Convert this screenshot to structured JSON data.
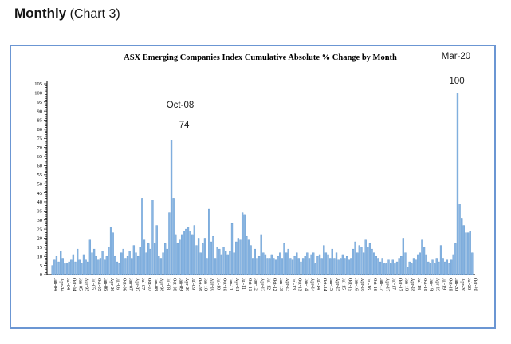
{
  "page": {
    "heading_bold": "Monthly",
    "heading_rest": " (Chart 3)"
  },
  "chart": {
    "colors": {
      "bar_fill": "#89b5e2",
      "bar_edge": "#5e96cf",
      "frame_border": "#6b96d3",
      "axis": "#000000"
    }
  },
  "chart_data": {
    "type": "bar",
    "title": "ASX Emerging Companies Index Cumulative Absolute % Change by Month",
    "xlabel": "",
    "ylabel": "",
    "ylim": [
      0,
      105
    ],
    "y_tick_step": 5,
    "y_minor_tick_step": 1,
    "x_tick_interval_months": 3,
    "grid": false,
    "legend": "none",
    "annotations": [
      {
        "month": "Oct-08",
        "value": 74,
        "text_label": "Oct-08",
        "value_label": "74"
      },
      {
        "month": "Mar-20",
        "value": 100,
        "text_label": "Mar-20",
        "value_label": "100"
      }
    ],
    "categories": [
      "Jan-04",
      "Feb-04",
      "Mar-04",
      "Apr-04",
      "May-04",
      "Jun-04",
      "Jul-04",
      "Aug-04",
      "Sep-04",
      "Oct-04",
      "Nov-04",
      "Dec-04",
      "Jan-05",
      "Feb-05",
      "Mar-05",
      "Apr-05",
      "May-05",
      "Jun-05",
      "Jul-05",
      "Aug-05",
      "Sep-05",
      "Oct-05",
      "Nov-05",
      "Dec-05",
      "Jan-06",
      "Feb-06",
      "Mar-06",
      "Apr-06",
      "May-06",
      "Jun-06",
      "Jul-06",
      "Aug-06",
      "Sep-06",
      "Oct-06",
      "Nov-06",
      "Dec-06",
      "Jan-07",
      "Feb-07",
      "Mar-07",
      "Apr-07",
      "May-07",
      "Jun-07",
      "Jul-07",
      "Aug-07",
      "Sep-07",
      "Oct-07",
      "Nov-07",
      "Dec-07",
      "Jan-08",
      "Feb-08",
      "Mar-08",
      "Apr-08",
      "May-08",
      "Jun-08",
      "Jul-08",
      "Aug-08",
      "Sep-08",
      "Oct-08",
      "Nov-08",
      "Dec-08",
      "Jan-09",
      "Feb-09",
      "Mar-09",
      "Apr-09",
      "May-09",
      "Jun-09",
      "Jul-09",
      "Aug-09",
      "Sep-09",
      "Oct-09",
      "Nov-09",
      "Dec-09",
      "Jan-10",
      "Feb-10",
      "Mar-10",
      "Apr-10",
      "May-10",
      "Jun-10",
      "Jul-10",
      "Aug-10",
      "Sep-10",
      "Oct-10",
      "Nov-10",
      "Dec-10",
      "Jan-11",
      "Feb-11",
      "Mar-11",
      "Apr-11",
      "May-11",
      "Jun-11",
      "Jul-11",
      "Aug-11",
      "Sep-11",
      "Oct-11",
      "Nov-11",
      "Dec-11",
      "Jan-12",
      "Feb-12",
      "Mar-12",
      "Apr-12",
      "May-12",
      "Jun-12",
      "Jul-12",
      "Aug-12",
      "Sep-12",
      "Oct-12",
      "Nov-12",
      "Dec-12",
      "Jan-13",
      "Feb-13",
      "Mar-13",
      "Apr-13",
      "May-13",
      "Jun-13",
      "Jul-13",
      "Aug-13",
      "Sep-13",
      "Oct-13",
      "Nov-13",
      "Dec-13",
      "Jan-14",
      "Feb-14",
      "Mar-14",
      "Apr-14",
      "May-14",
      "Jun-14",
      "Jul-14",
      "Aug-14",
      "Sep-14",
      "Oct-14",
      "Nov-14",
      "Dec-14",
      "Jan-15",
      "Feb-15",
      "Mar-15",
      "Apr-15",
      "May-15",
      "Jun-15",
      "Jul-15",
      "Aug-15",
      "Sep-15",
      "Oct-15",
      "Nov-15",
      "Dec-15",
      "Jan-16",
      "Feb-16",
      "Mar-16",
      "Apr-16",
      "May-16",
      "Jun-16",
      "Jul-16",
      "Aug-16",
      "Sep-16",
      "Oct-16",
      "Nov-16",
      "Dec-16",
      "Jan-17",
      "Feb-17",
      "Mar-17",
      "Apr-17",
      "May-17",
      "Jun-17",
      "Jul-17",
      "Aug-17",
      "Sep-17",
      "Oct-17",
      "Nov-17",
      "Dec-17",
      "Jan-18",
      "Feb-18",
      "Mar-18",
      "Apr-18",
      "May-18",
      "Jun-18",
      "Jul-18",
      "Aug-18",
      "Sep-18",
      "Oct-18",
      "Nov-18",
      "Dec-18",
      "Jan-19",
      "Feb-19",
      "Mar-19",
      "Apr-19",
      "May-19",
      "Jun-19",
      "Jul-19",
      "Aug-19",
      "Sep-19",
      "Oct-19",
      "Nov-19",
      "Dec-19",
      "Jan-20",
      "Feb-20",
      "Mar-20",
      "Apr-20",
      "May-20",
      "Jun-20",
      "Jul-20",
      "Aug-20",
      "Sep-20",
      "Oct-20"
    ],
    "values": [
      5,
      8,
      10,
      7,
      13,
      9,
      6,
      6,
      7,
      8,
      11,
      7,
      14,
      8,
      6,
      11,
      8,
      7,
      19,
      12,
      14,
      10,
      8,
      9,
      13,
      8,
      10,
      15,
      26,
      23,
      10,
      7,
      6,
      12,
      14,
      9,
      10,
      13,
      9,
      16,
      12,
      10,
      15,
      42,
      19,
      12,
      17,
      14,
      41,
      17,
      27,
      10,
      9,
      12,
      17,
      14,
      34,
      74,
      42,
      22,
      17,
      19,
      22,
      24,
      25,
      26,
      24,
      22,
      27,
      16,
      20,
      12,
      17,
      20,
      9,
      36,
      18,
      21,
      9,
      15,
      14,
      11,
      15,
      13,
      11,
      13,
      28,
      12,
      18,
      20,
      19,
      34,
      33,
      21,
      19,
      16,
      9,
      14,
      9,
      10,
      22,
      12,
      11,
      9,
      9,
      11,
      9,
      8,
      10,
      12,
      9,
      17,
      12,
      14,
      9,
      8,
      10,
      12,
      9,
      7,
      9,
      10,
      12,
      9,
      11,
      12,
      6,
      10,
      11,
      9,
      16,
      12,
      11,
      9,
      14,
      9,
      12,
      8,
      9,
      11,
      9,
      10,
      8,
      9,
      14,
      18,
      12,
      16,
      15,
      12,
      19,
      15,
      17,
      14,
      12,
      10,
      9,
      7,
      9,
      6,
      6,
      8,
      6,
      8,
      6,
      7,
      9,
      10,
      20,
      12,
      4,
      7,
      6,
      9,
      8,
      11,
      12,
      19,
      15,
      11,
      7,
      6,
      8,
      6,
      9,
      7,
      16,
      9,
      7,
      8,
      6,
      8,
      11,
      17,
      100,
      39,
      31,
      27,
      23,
      23,
      24,
      12
    ]
  }
}
